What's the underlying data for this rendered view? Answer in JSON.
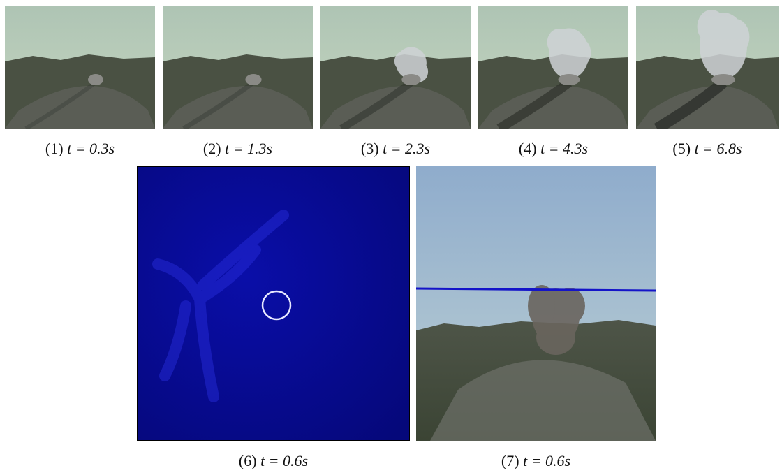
{
  "figure": {
    "panels": [
      {
        "index": "(1)",
        "time": "t = 0.3s"
      },
      {
        "index": "(2)",
        "time": "t = 1.3s"
      },
      {
        "index": "(3)",
        "time": "t = 2.3s"
      },
      {
        "index": "(4)",
        "time": "t = 4.3s"
      },
      {
        "index": "(5)",
        "time": "t = 6.8s"
      },
      {
        "index": "(6)",
        "time": "t = 0.6s"
      },
      {
        "index": "(7)",
        "time": "t = 0.6s"
      }
    ]
  }
}
